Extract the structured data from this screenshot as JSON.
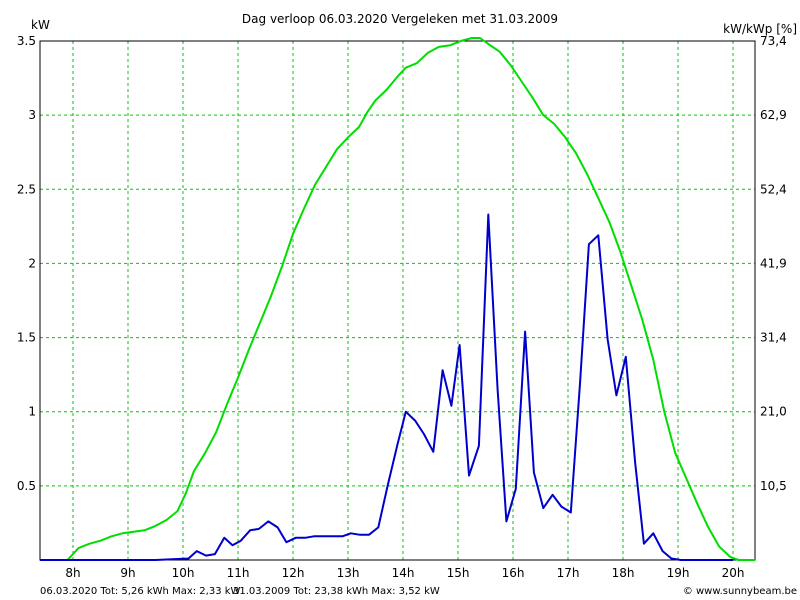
{
  "header": {
    "title": "Dag  verloop 06.03.2020    Vergeleken met 31.03.2009",
    "left_unit": "kW",
    "right_unit": "kW/kWp [%]"
  },
  "footer": {
    "series1": "06.03.2020 Tot: 5,26 kWh Max: 2,33 kW",
    "series2": "31.03.2009 Tot: 23,38 kWh Max: 3,52 kW",
    "site": "© www.sunnybeam.be"
  },
  "chart_data": {
    "type": "line",
    "x_labels": [
      "8h",
      "9h",
      "10h",
      "11h",
      "12h",
      "13h",
      "14h",
      "15h",
      "16h",
      "17h",
      "18h",
      "19h",
      "20h"
    ],
    "xlim": [
      7.4,
      20.4
    ],
    "y_labels": [
      "0.5",
      "1",
      "1.5",
      "2",
      "2.5",
      "3",
      "3.5"
    ],
    "y_right_labels": [
      "10,5",
      "21,0",
      "31,4",
      "41,9",
      "52,4",
      "62,9",
      "73,4"
    ],
    "ylim": [
      0,
      3.5
    ],
    "grid": true,
    "colors": {
      "series1": "#0000cc",
      "series2": "#00dd00",
      "grid": "#00cc00"
    },
    "series": [
      {
        "label": "06.03.2020",
        "color": "#0000cc",
        "points": [
          [
            7.4,
            0
          ],
          [
            9.5,
            0
          ],
          [
            10.1,
            0.01
          ],
          [
            10.25,
            0.06
          ],
          [
            10.42,
            0.03
          ],
          [
            10.58,
            0.04
          ],
          [
            10.75,
            0.15
          ],
          [
            10.9,
            0.1
          ],
          [
            11.05,
            0.13
          ],
          [
            11.22,
            0.2
          ],
          [
            11.38,
            0.21
          ],
          [
            11.55,
            0.26
          ],
          [
            11.72,
            0.22
          ],
          [
            11.88,
            0.12
          ],
          [
            12.05,
            0.15
          ],
          [
            12.22,
            0.15
          ],
          [
            12.38,
            0.16
          ],
          [
            12.55,
            0.16
          ],
          [
            12.72,
            0.16
          ],
          [
            12.9,
            0.16
          ],
          [
            13.05,
            0.18
          ],
          [
            13.22,
            0.17
          ],
          [
            13.38,
            0.17
          ],
          [
            13.55,
            0.22
          ],
          [
            13.72,
            0.5
          ],
          [
            13.9,
            0.78
          ],
          [
            14.05,
            1.0
          ],
          [
            14.22,
            0.94
          ],
          [
            14.38,
            0.85
          ],
          [
            14.55,
            0.73
          ],
          [
            14.72,
            1.28
          ],
          [
            14.88,
            1.04
          ],
          [
            15.03,
            1.45
          ],
          [
            15.2,
            0.57
          ],
          [
            15.38,
            0.77
          ],
          [
            15.55,
            2.33
          ],
          [
            15.72,
            1.15
          ],
          [
            15.88,
            0.26
          ],
          [
            16.05,
            0.48
          ],
          [
            16.22,
            1.54
          ],
          [
            16.38,
            0.59
          ],
          [
            16.55,
            0.35
          ],
          [
            16.72,
            0.44
          ],
          [
            16.88,
            0.36
          ],
          [
            17.05,
            0.32
          ],
          [
            17.22,
            1.2
          ],
          [
            17.38,
            2.13
          ],
          [
            17.55,
            2.19
          ],
          [
            17.72,
            1.49
          ],
          [
            17.88,
            1.11
          ],
          [
            18.05,
            1.37
          ],
          [
            18.22,
            0.66
          ],
          [
            18.38,
            0.11
          ],
          [
            18.55,
            0.18
          ],
          [
            18.72,
            0.06
          ],
          [
            18.88,
            0.01
          ],
          [
            19.05,
            0.0
          ],
          [
            20.0,
            0.0
          ]
        ]
      },
      {
        "label": "31.03.2009",
        "color": "#00dd00",
        "points": [
          [
            7.4,
            0
          ],
          [
            7.9,
            0
          ],
          [
            8.1,
            0.08
          ],
          [
            8.3,
            0.11
          ],
          [
            8.5,
            0.13
          ],
          [
            8.7,
            0.16
          ],
          [
            8.9,
            0.18
          ],
          [
            9.1,
            0.19
          ],
          [
            9.3,
            0.2
          ],
          [
            9.5,
            0.23
          ],
          [
            9.7,
            0.27
          ],
          [
            9.9,
            0.33
          ],
          [
            10.05,
            0.45
          ],
          [
            10.2,
            0.6
          ],
          [
            10.4,
            0.72
          ],
          [
            10.6,
            0.86
          ],
          [
            10.8,
            1.05
          ],
          [
            11.0,
            1.23
          ],
          [
            11.2,
            1.42
          ],
          [
            11.4,
            1.6
          ],
          [
            11.6,
            1.78
          ],
          [
            11.8,
            1.98
          ],
          [
            12.0,
            2.2
          ],
          [
            12.2,
            2.37
          ],
          [
            12.4,
            2.53
          ],
          [
            12.6,
            2.65
          ],
          [
            12.8,
            2.77
          ],
          [
            13.0,
            2.85
          ],
          [
            13.2,
            2.92
          ],
          [
            13.35,
            3.02
          ],
          [
            13.5,
            3.1
          ],
          [
            13.7,
            3.17
          ],
          [
            13.9,
            3.26
          ],
          [
            14.05,
            3.32
          ],
          [
            14.25,
            3.35
          ],
          [
            14.45,
            3.42
          ],
          [
            14.65,
            3.46
          ],
          [
            14.85,
            3.47
          ],
          [
            15.05,
            3.5
          ],
          [
            15.25,
            3.52
          ],
          [
            15.4,
            3.52
          ],
          [
            15.55,
            3.48
          ],
          [
            15.75,
            3.43
          ],
          [
            15.95,
            3.34
          ],
          [
            16.15,
            3.23
          ],
          [
            16.35,
            3.12
          ],
          [
            16.55,
            3.0
          ],
          [
            16.75,
            2.94
          ],
          [
            16.95,
            2.85
          ],
          [
            17.15,
            2.74
          ],
          [
            17.35,
            2.6
          ],
          [
            17.55,
            2.44
          ],
          [
            17.75,
            2.28
          ],
          [
            17.95,
            2.08
          ],
          [
            18.15,
            1.85
          ],
          [
            18.35,
            1.62
          ],
          [
            18.55,
            1.35
          ],
          [
            18.75,
            1.0
          ],
          [
            18.95,
            0.72
          ],
          [
            19.15,
            0.55
          ],
          [
            19.35,
            0.38
          ],
          [
            19.55,
            0.22
          ],
          [
            19.75,
            0.09
          ],
          [
            19.95,
            0.02
          ],
          [
            20.1,
            0
          ],
          [
            20.4,
            0
          ]
        ]
      }
    ]
  }
}
